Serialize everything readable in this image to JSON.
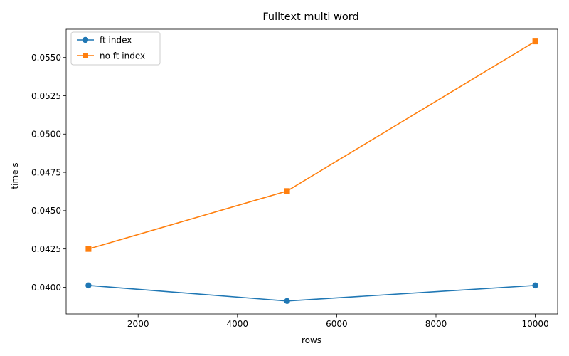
{
  "chart_data": {
    "type": "line",
    "title": "Fulltext multi word",
    "xlabel": "rows",
    "ylabel": "time s",
    "x": [
      1000,
      5000,
      10000
    ],
    "series": [
      {
        "name": "ft index",
        "values": [
          0.04012,
          0.0391,
          0.04012
        ],
        "color": "#1f77b4",
        "marker": "circle"
      },
      {
        "name": "no ft index",
        "values": [
          0.0425,
          0.04628,
          0.05605
        ],
        "color": "#ff7f0e",
        "marker": "square"
      }
    ],
    "xlim": [
      550,
      10450
    ],
    "ylim": [
      0.038255,
      0.056845
    ],
    "xticks": [
      2000,
      4000,
      6000,
      8000,
      10000
    ],
    "xtick_labels": [
      "2000",
      "4000",
      "6000",
      "8000",
      "10000"
    ],
    "yticks": [
      0.04,
      0.0425,
      0.045,
      0.0475,
      0.05,
      0.0525,
      0.055
    ],
    "ytick_labels": [
      "0.0400",
      "0.0425",
      "0.0450",
      "0.0475",
      "0.0500",
      "0.0525",
      "0.0550"
    ],
    "grid": false,
    "legend_position": "top-left"
  }
}
